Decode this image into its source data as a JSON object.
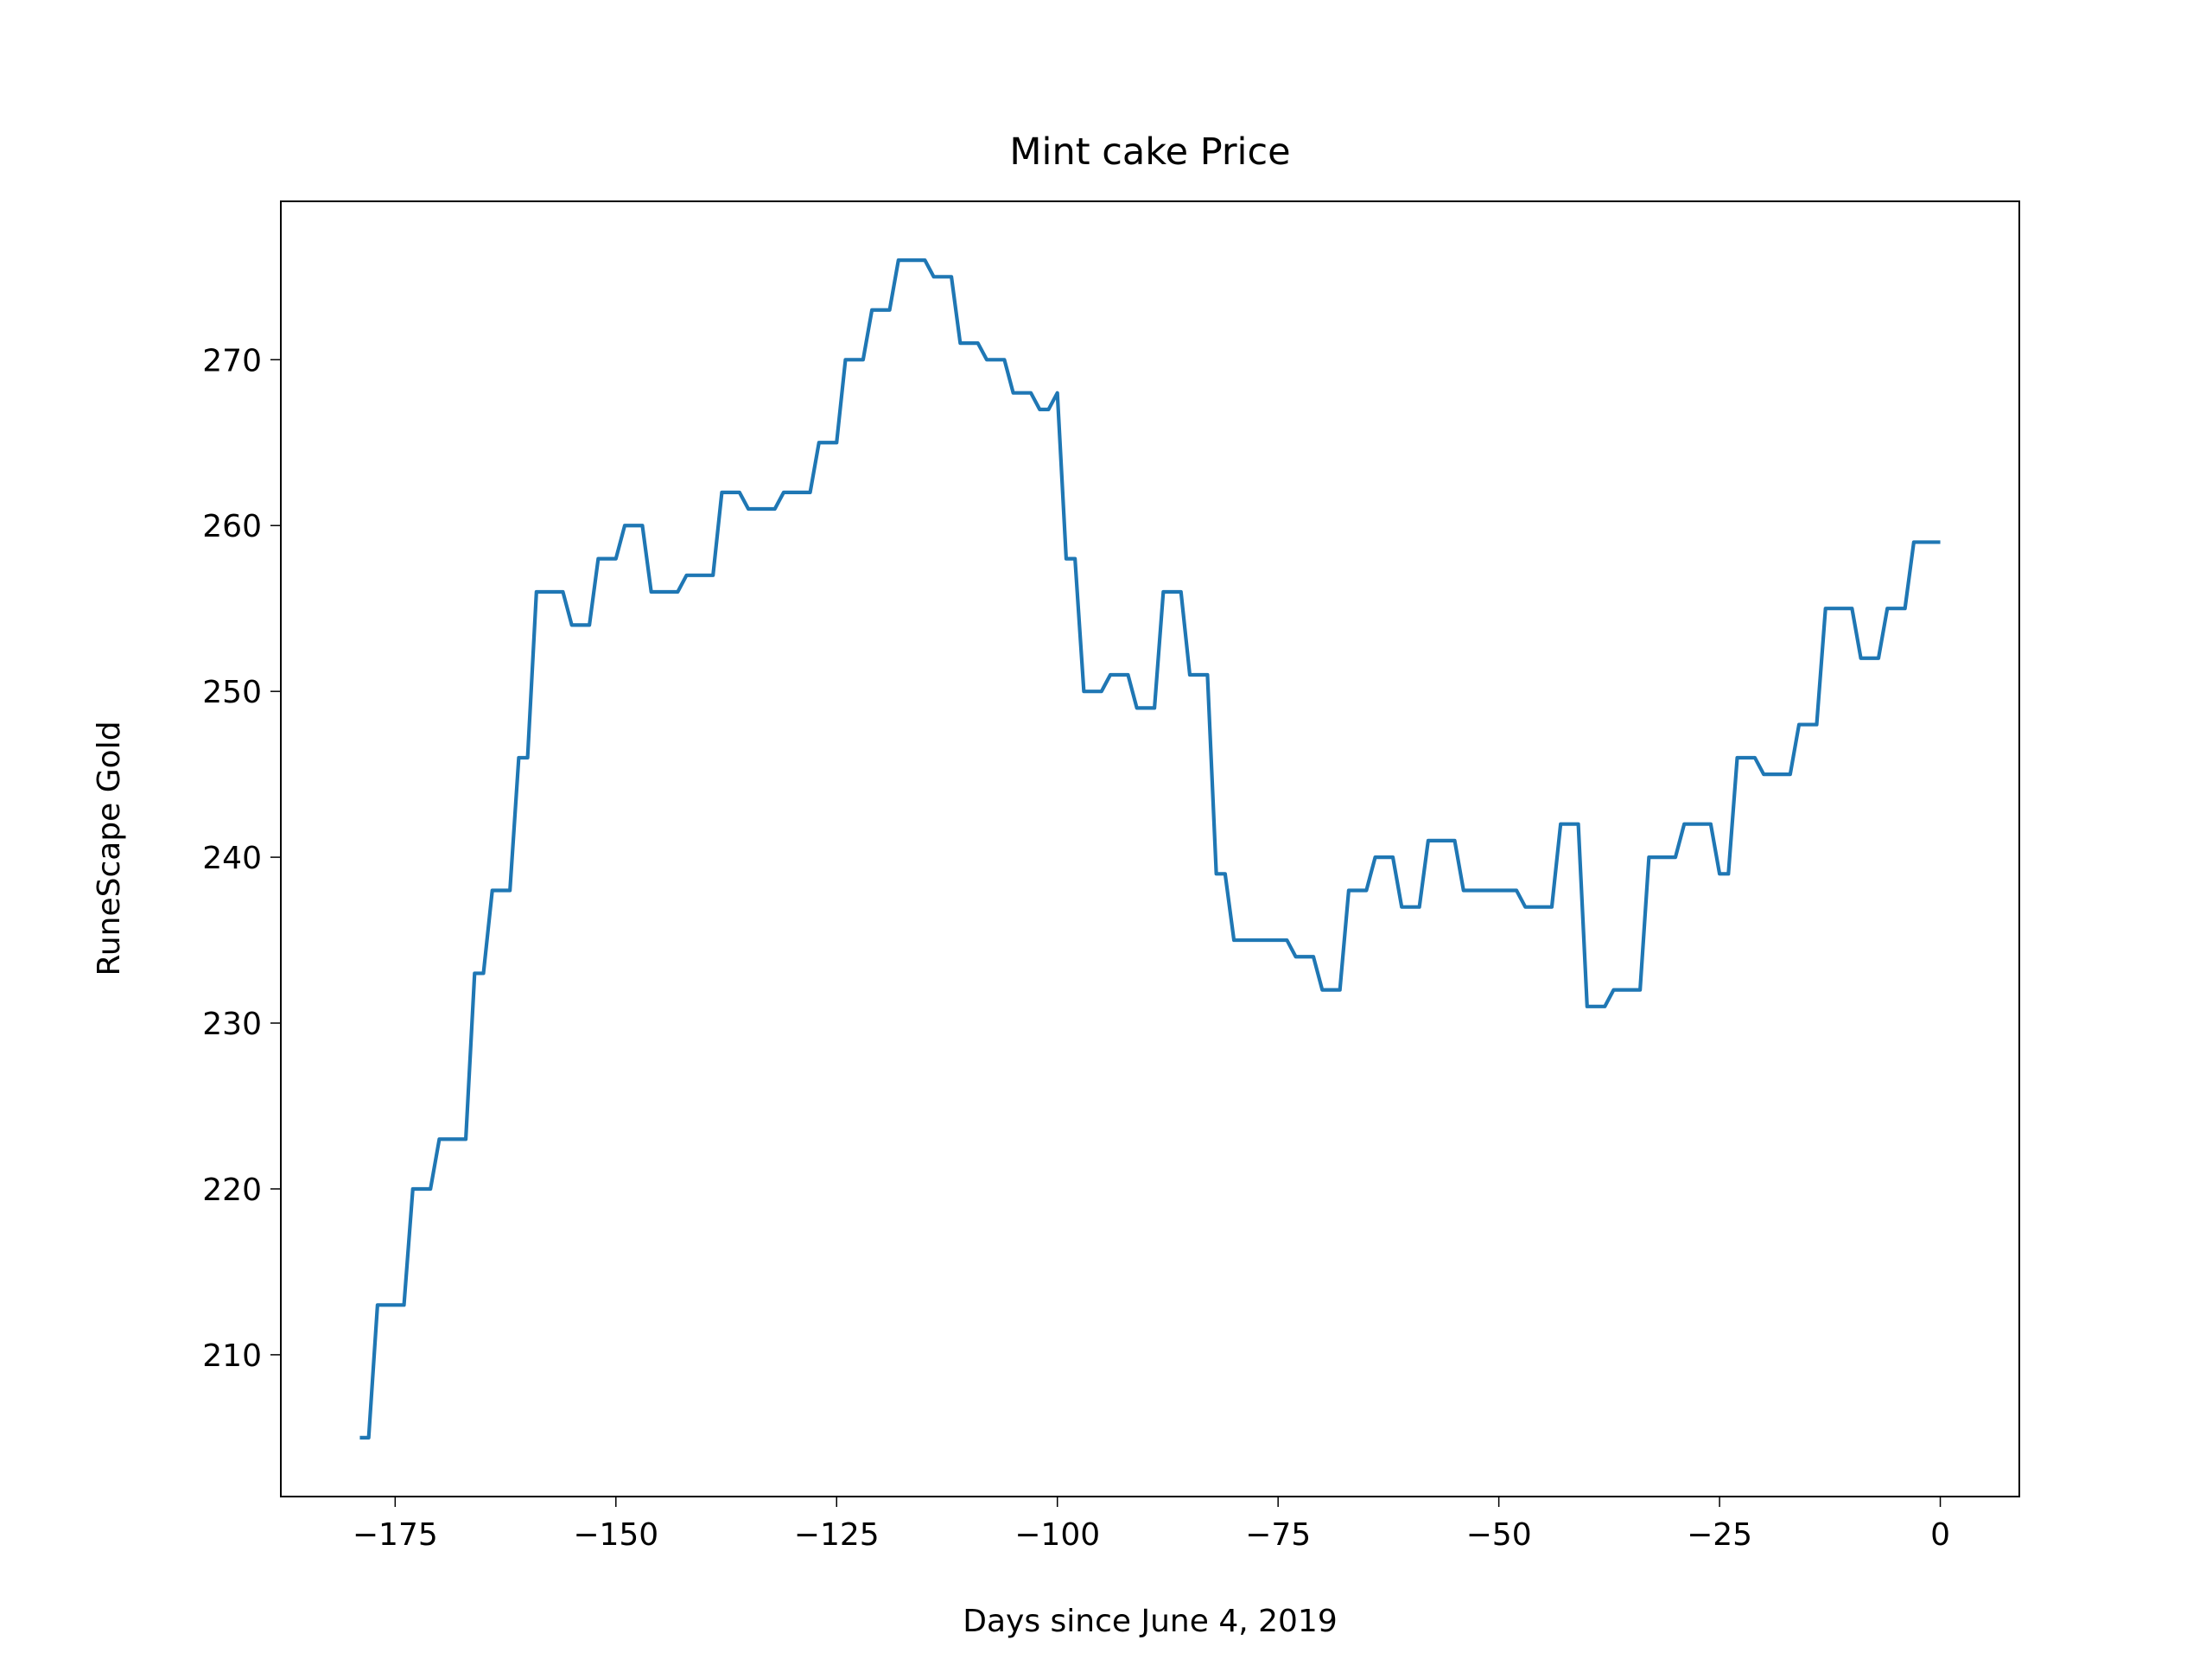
{
  "chart_data": {
    "type": "line",
    "title": "Mint cake Price",
    "xlabel": "Days since June 4, 2019",
    "ylabel": "RuneScape Gold",
    "x": [
      -179,
      -178,
      -177,
      -176,
      -175,
      -174,
      -173,
      -172,
      -171,
      -170,
      -169,
      -168,
      -167,
      -166,
      -165,
      -164,
      -163,
      -162,
      -161,
      -160,
      -159,
      -158,
      -157,
      -156,
      -155,
      -154,
      -153,
      -152,
      -151,
      -150,
      -149,
      -148,
      -147,
      -146,
      -145,
      -144,
      -143,
      -142,
      -141,
      -140,
      -139,
      -138,
      -137,
      -136,
      -135,
      -134,
      -133,
      -132,
      -131,
      -130,
      -129,
      -128,
      -127,
      -126,
      -125,
      -124,
      -123,
      -122,
      -121,
      -120,
      -119,
      -118,
      -117,
      -116,
      -115,
      -114,
      -113,
      -112,
      -111,
      -110,
      -109,
      -108,
      -107,
      -106,
      -105,
      -104,
      -103,
      -102,
      -101,
      -100,
      -99,
      -98,
      -97,
      -96,
      -95,
      -94,
      -93,
      -92,
      -91,
      -90,
      -89,
      -88,
      -87,
      -86,
      -85,
      -84,
      -83,
      -82,
      -81,
      -80,
      -79,
      -78,
      -77,
      -76,
      -75,
      -74,
      -73,
      -72,
      -71,
      -70,
      -69,
      -68,
      -67,
      -66,
      -65,
      -64,
      -63,
      -62,
      -61,
      -60,
      -59,
      -58,
      -57,
      -56,
      -55,
      -54,
      -53,
      -52,
      -51,
      -50,
      -49,
      -48,
      -47,
      -46,
      -45,
      -44,
      -43,
      -42,
      -41,
      -40,
      -39,
      -38,
      -37,
      -36,
      -35,
      -34,
      -33,
      -32,
      -31,
      -30,
      -29,
      -28,
      -27,
      -26,
      -25,
      -24,
      -23,
      -22,
      -21,
      -20,
      -19,
      -18,
      -17,
      -16,
      -15,
      -14,
      -13,
      -12,
      -11,
      -10,
      -9,
      -8,
      -7,
      -6,
      -5,
      -4,
      -3,
      -2,
      -1,
      0
    ],
    "series": [
      {
        "name": "Mint cake",
        "color": "#1f77b4",
        "values": [
          205,
          205,
          213,
          213,
          213,
          213,
          220,
          220,
          220,
          223,
          223,
          223,
          223,
          233,
          233,
          238,
          238,
          238,
          246,
          246,
          256,
          256,
          256,
          256,
          254,
          254,
          254,
          258,
          258,
          258,
          260,
          260,
          260,
          256,
          256,
          256,
          256,
          257,
          257,
          257,
          257,
          262,
          262,
          262,
          261,
          261,
          261,
          261,
          262,
          262,
          262,
          262,
          265,
          265,
          265,
          270,
          270,
          270,
          273,
          273,
          273,
          276,
          276,
          276,
          276,
          275,
          275,
          275,
          271,
          271,
          271,
          270,
          270,
          270,
          268,
          268,
          268,
          267,
          267,
          268,
          258,
          258,
          250,
          250,
          250,
          251,
          251,
          251,
          249,
          249,
          249,
          256,
          256,
          256,
          251,
          251,
          251,
          239,
          239,
          235,
          235,
          235,
          235,
          235,
          235,
          235,
          234,
          234,
          234,
          232,
          232,
          232,
          238,
          238,
          238,
          240,
          240,
          240,
          237,
          237,
          237,
          241,
          241,
          241,
          241,
          238,
          238,
          238,
          238,
          238,
          238,
          238,
          237,
          237,
          237,
          237,
          242,
          242,
          242,
          231,
          231,
          231,
          232,
          232,
          232,
          232,
          240,
          240,
          240,
          240,
          242,
          242,
          242,
          242,
          239,
          239,
          246,
          246,
          246,
          245,
          245,
          245,
          245,
          248,
          248,
          248,
          255,
          255,
          255,
          255,
          252,
          252,
          252,
          255,
          255,
          255,
          259,
          259,
          259,
          259
        ]
      }
    ],
    "xlim": [
      -187.95,
      8.95
    ],
    "ylim": [
      201.45,
      279.55
    ],
    "xticks": [
      {
        "value": -175,
        "label": "−175"
      },
      {
        "value": -150,
        "label": "−150"
      },
      {
        "value": -125,
        "label": "−125"
      },
      {
        "value": -100,
        "label": "−100"
      },
      {
        "value": -75,
        "label": "−75"
      },
      {
        "value": -50,
        "label": "−50"
      },
      {
        "value": -25,
        "label": "−25"
      },
      0
    ],
    "yticks": [
      210,
      220,
      230,
      240,
      250,
      260,
      270
    ]
  }
}
